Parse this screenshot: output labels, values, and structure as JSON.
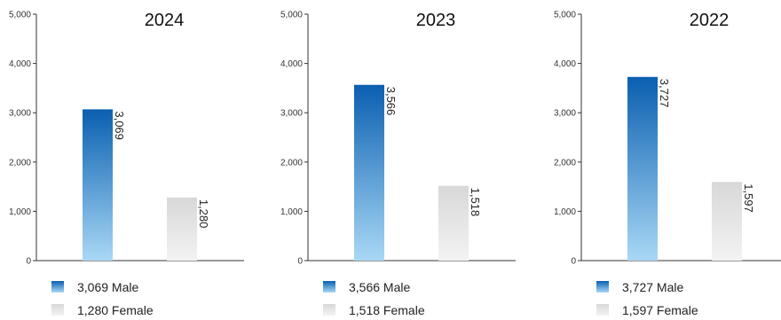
{
  "chart_data": [
    {
      "type": "bar",
      "title": "2024",
      "categories": [
        "Male",
        "Female"
      ],
      "values": [
        3069,
        1280
      ],
      "value_labels": [
        "3,069",
        "1,280"
      ],
      "ylim": [
        0,
        5000
      ],
      "yticks": [
        "0",
        "1,000",
        "2,000",
        "3,000",
        "4,000",
        "5,000"
      ],
      "legend": [
        "3,069 Male",
        "1,280 Female"
      ],
      "grid": false,
      "legend_placement": "bottom"
    },
    {
      "type": "bar",
      "title": "2023",
      "categories": [
        "Male",
        "Female"
      ],
      "values": [
        3566,
        1518
      ],
      "value_labels": [
        "3,566",
        "1,518"
      ],
      "ylim": [
        0,
        5000
      ],
      "yticks": [
        "0",
        "1,000",
        "2,000",
        "3,000",
        "4,000",
        "5,000"
      ],
      "legend": [
        "3,566 Male",
        "1,518 Female"
      ],
      "grid": false,
      "legend_placement": "bottom"
    },
    {
      "type": "bar",
      "title": "2022",
      "categories": [
        "Male",
        "Female"
      ],
      "values": [
        3727,
        1597
      ],
      "value_labels": [
        "3,727",
        "1,597"
      ],
      "ylim": [
        0,
        5000
      ],
      "yticks": [
        "0",
        "1,000",
        "2,000",
        "3,000",
        "4,000",
        "5,000"
      ],
      "legend": [
        "3,727 Male",
        "1,597 Female"
      ],
      "grid": false,
      "legend_placement": "bottom"
    }
  ],
  "colors": {
    "male_top": "#0a5fb0",
    "male_bottom": "#a9d8f5",
    "female_top": "#d8d8d8",
    "female_bottom": "#f3f3f3",
    "axis": "#333333"
  }
}
